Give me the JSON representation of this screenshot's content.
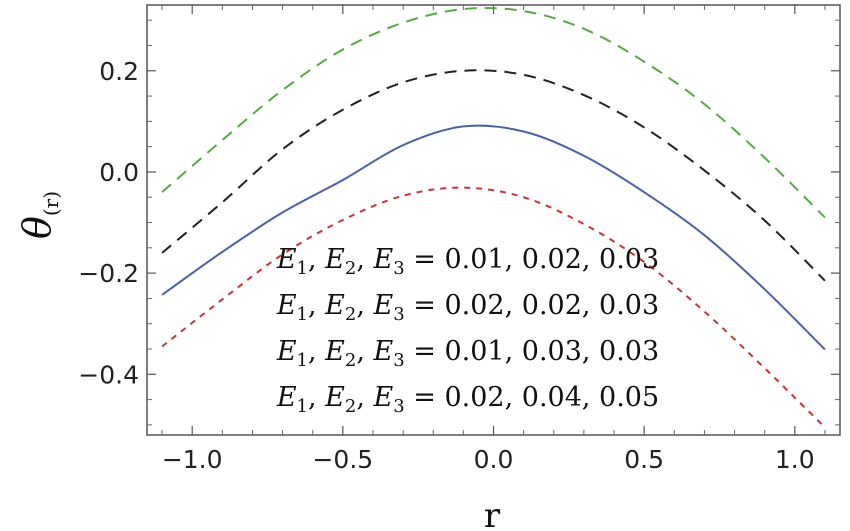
{
  "chart_data": {
    "type": "line",
    "xlabel": "r",
    "ylabel": "θ",
    "ylabel_subscript": "(r)",
    "xlim": [
      -1.15,
      1.15
    ],
    "ylim": [
      -0.52,
      0.33
    ],
    "x_ticks": [
      -1.0,
      -0.5,
      0.0,
      0.5,
      1.0
    ],
    "x_tick_labels": [
      "−1.0",
      "−0.5",
      "0.0",
      "0.5",
      "1.0"
    ],
    "y_ticks": [
      -0.4,
      -0.2,
      0.0,
      0.2
    ],
    "y_tick_labels": [
      "−0.4",
      "−0.2",
      "0.0",
      "0.2"
    ],
    "grid": false,
    "legend_placement": "bottom-center",
    "series": [
      {
        "name": "E1, E2, E3 = 0.01, 0.02, 0.03",
        "color": "#4a5fad",
        "style": "solid",
        "x": [
          -1.1,
          -0.9,
          -0.7,
          -0.5,
          -0.3,
          -0.1,
          0.1,
          0.3,
          0.5,
          0.7,
          0.9,
          1.1
        ],
        "y": [
          -0.243,
          -0.158,
          -0.08,
          -0.016,
          0.053,
          0.09,
          0.08,
          0.032,
          -0.04,
          -0.125,
          -0.232,
          -0.351
        ]
      },
      {
        "name": "E1, E2, E3 = 0.02, 0.02, 0.03",
        "color": "#cc3333",
        "style": "dotted",
        "x": [
          -1.1,
          -0.9,
          -0.7,
          -0.5,
          -0.3,
          -0.1,
          0.1,
          0.3,
          0.5,
          0.7,
          0.9,
          1.1
        ],
        "y": [
          -0.345,
          -0.252,
          -0.163,
          -0.095,
          -0.047,
          -0.031,
          -0.05,
          -0.103,
          -0.178,
          -0.276,
          -0.388,
          -0.505
        ]
      },
      {
        "name": "E1, E2, E3 = 0.01, 0.03, 0.03",
        "color": "#222222",
        "style": "dashed",
        "x": [
          -1.1,
          -0.9,
          -0.7,
          -0.5,
          -0.3,
          -0.1,
          0.1,
          0.3,
          0.5,
          0.7,
          0.9,
          1.1
        ],
        "y": [
          -0.16,
          -0.06,
          0.045,
          0.123,
          0.177,
          0.2,
          0.192,
          0.152,
          0.088,
          0.003,
          -0.096,
          -0.215
        ]
      },
      {
        "name": "E1, E2, E3 = 0.02, 0.04, 0.05",
        "color": "#55aa44",
        "style": "dashed",
        "x": [
          -1.1,
          -0.9,
          -0.7,
          -0.5,
          -0.3,
          -0.1,
          0.1,
          0.3,
          0.5,
          0.7,
          0.9,
          1.1
        ],
        "y": [
          -0.04,
          0.063,
          0.162,
          0.242,
          0.295,
          0.322,
          0.318,
          0.283,
          0.218,
          0.134,
          0.028,
          -0.09
        ]
      }
    ]
  }
}
